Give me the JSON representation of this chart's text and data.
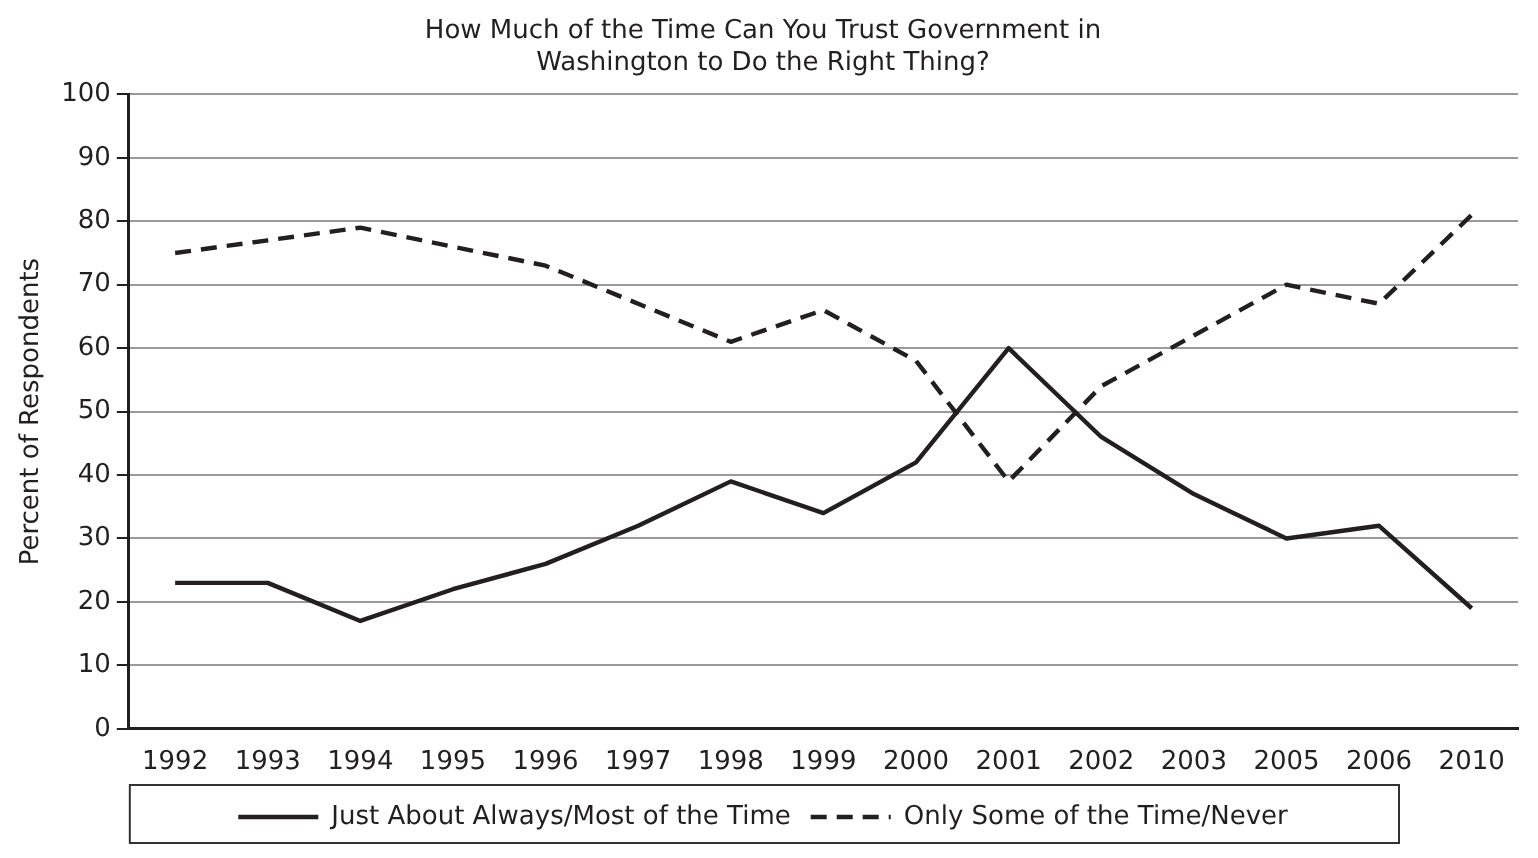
{
  "chart_data": {
    "type": "line",
    "title": "How Much of the Time Can You Trust Government in Washington to Do the Right Thing?",
    "ylabel": "Percent of Respondents",
    "categories": [
      "1992",
      "1993",
      "1994",
      "1995",
      "1996",
      "1997",
      "1998",
      "1999",
      "2000",
      "2001",
      "2002",
      "2003",
      "2005",
      "2006",
      "2010"
    ],
    "series": [
      {
        "name": "Just About Always/Most of the Time",
        "color": "#231f20",
        "line_style": "solid",
        "values": [
          23,
          23,
          17,
          22,
          26,
          32,
          39,
          34,
          42,
          60,
          46,
          37,
          30,
          32,
          19
        ]
      },
      {
        "name": "Only Some of the Time/Never",
        "color": "#231f20",
        "line_style": "dashed",
        "values": [
          75,
          77,
          79,
          76,
          73,
          67,
          61,
          66,
          58,
          39,
          54,
          62,
          70,
          67,
          81
        ]
      }
    ],
    "ylim": [
      0,
      100
    ],
    "yticks": [
      0,
      10,
      20,
      30,
      40,
      50,
      60,
      70,
      80,
      90,
      100
    ],
    "grid": "y",
    "legend": "bottom",
    "marker": "none"
  }
}
